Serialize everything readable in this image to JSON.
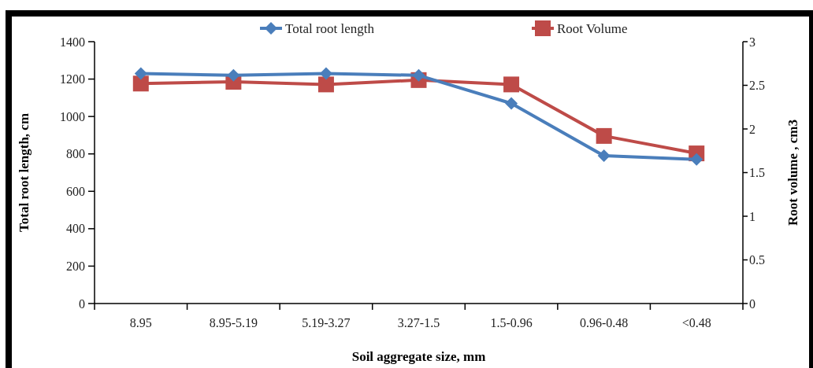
{
  "chart_data": {
    "type": "line",
    "xlabel": "Soil aggregate size, mm",
    "ylabel": "Total root length, cm",
    "y2label": "Root volume , cm3",
    "categories": [
      "8.95",
      "8.95-5.19",
      "5.19-3.27",
      "3.27-1.5",
      "1.5-0.96",
      "0.96-0.48",
      "<0.48"
    ],
    "series": [
      {
        "name": "Total root length",
        "color": "#4a7ebb",
        "marker": "diamond",
        "values": [
          1230,
          1220,
          1230,
          1220,
          1070,
          790,
          770
        ]
      },
      {
        "name": "Root Volume",
        "color": "#be4b48",
        "marker": "square",
        "axis": "y2",
        "values": [
          2.52,
          2.54,
          2.51,
          2.56,
          2.51,
          1.92,
          1.72
        ]
      }
    ],
    "ylim": [
      0,
      1400
    ],
    "yticks": [
      0,
      200,
      400,
      600,
      800,
      1000,
      1200,
      1400
    ],
    "y2lim": [
      0,
      3
    ],
    "y2ticks": [
      0,
      {
        "value": 0.5,
        "label": "0.5"
      },
      1,
      {
        "value": 1.5,
        "label": "1.5"
      },
      2,
      {
        "value": 2.5,
        "label": "2.5"
      },
      3
    ],
    "legend": "top",
    "grid": false
  }
}
